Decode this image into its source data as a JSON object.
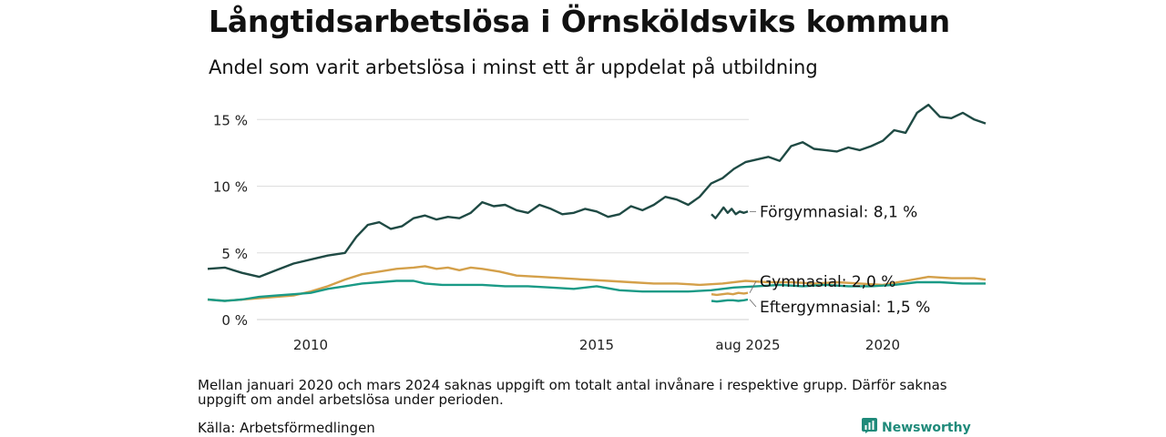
{
  "title": "Långtidsarbetslösa i Örnsköldsviks kommun",
  "subtitle": "Andel som varit arbetslösa i minst ett år uppdelat på utbildning",
  "note": "Mellan januari 2020 och mars 2024 saknas uppgift om totalt antal invånare i respektive grupp. Därför saknas uppgift om andel arbetslösa under perioden.",
  "source": "Källa: Arbetsförmedlingen",
  "brand": {
    "name": "Newsworthy",
    "icon": "newsworthy-logo-icon",
    "color": "#1f8a7a"
  },
  "chart_data": {
    "type": "line",
    "x_ticks": [
      2010,
      2015,
      2020
    ],
    "end_tick_label": "aug 2025",
    "y_ticks": [
      {
        "value": 0,
        "label": "0 %"
      },
      {
        "value": 5,
        "label": "5 %"
      },
      {
        "value": 10,
        "label": "10 %"
      },
      {
        "value": 15,
        "label": "15 %"
      }
    ],
    "ylim": [
      0,
      16.5
    ],
    "grid": true,
    "series": [
      {
        "name": "Förgymnasial",
        "color": "#1f4a44",
        "end_label": "Förgymnasial: 8,1 %",
        "points": [
          [
            2008.2,
            3.8
          ],
          [
            2008.5,
            3.9
          ],
          [
            2008.8,
            3.5
          ],
          [
            2009.1,
            3.2
          ],
          [
            2009.4,
            3.7
          ],
          [
            2009.7,
            4.2
          ],
          [
            2010,
            4.5
          ],
          [
            2010.3,
            4.8
          ],
          [
            2010.6,
            5.0
          ],
          [
            2010.8,
            6.2
          ],
          [
            2011.0,
            7.1
          ],
          [
            2011.2,
            7.3
          ],
          [
            2011.4,
            6.8
          ],
          [
            2011.6,
            7.0
          ],
          [
            2011.8,
            7.6
          ],
          [
            2012.0,
            7.8
          ],
          [
            2012.2,
            7.5
          ],
          [
            2012.4,
            7.7
          ],
          [
            2012.6,
            7.6
          ],
          [
            2012.8,
            8.0
          ],
          [
            2013.0,
            8.8
          ],
          [
            2013.2,
            8.5
          ],
          [
            2013.4,
            8.6
          ],
          [
            2013.6,
            8.2
          ],
          [
            2013.8,
            8.0
          ],
          [
            2014.0,
            8.6
          ],
          [
            2014.2,
            8.3
          ],
          [
            2014.4,
            7.9
          ],
          [
            2014.6,
            8.0
          ],
          [
            2014.8,
            8.3
          ],
          [
            2015.0,
            8.1
          ],
          [
            2015.2,
            7.7
          ],
          [
            2015.4,
            7.9
          ],
          [
            2015.6,
            8.5
          ],
          [
            2015.8,
            8.2
          ],
          [
            2016.0,
            8.6
          ],
          [
            2016.2,
            9.2
          ],
          [
            2016.4,
            9.0
          ],
          [
            2016.6,
            8.6
          ],
          [
            2016.8,
            9.2
          ],
          [
            2017.0,
            10.2
          ],
          [
            2017.2,
            10.6
          ],
          [
            2017.4,
            11.3
          ],
          [
            2017.6,
            11.8
          ],
          [
            2017.8,
            12.0
          ],
          [
            2018.0,
            12.2
          ],
          [
            2018.2,
            11.9
          ],
          [
            2018.4,
            13.0
          ],
          [
            2018.6,
            13.3
          ],
          [
            2018.8,
            12.8
          ],
          [
            2019.0,
            12.7
          ],
          [
            2019.2,
            12.6
          ],
          [
            2019.4,
            12.9
          ],
          [
            2019.6,
            12.7
          ],
          [
            2019.8,
            13.0
          ],
          [
            2020.0,
            13.4
          ],
          [
            2020.2,
            14.2
          ],
          [
            2020.4,
            14.0
          ],
          [
            2020.6,
            15.5
          ],
          [
            2020.8,
            16.1
          ],
          [
            2021.0,
            15.2
          ],
          [
            2021.2,
            15.1
          ],
          [
            2021.4,
            15.5
          ],
          [
            2021.6,
            15.0
          ],
          [
            2021.8,
            14.7
          ]
        ],
        "points_2025": [
          [
            2025.0,
            7.9
          ],
          [
            2025.15,
            7.6
          ],
          [
            2025.3,
            8.0
          ],
          [
            2025.45,
            8.4
          ],
          [
            2025.6,
            8.0
          ],
          [
            2025.75,
            8.3
          ],
          [
            2025.9,
            7.9
          ],
          [
            2026.05,
            8.1
          ],
          [
            2026.2,
            8.0
          ],
          [
            2026.35,
            8.1
          ]
        ]
      },
      {
        "name": "Gymnasial",
        "color": "#d4a04a",
        "end_label": "Gymnasial: 2,0 %",
        "points": [
          [
            2008.2,
            1.5
          ],
          [
            2008.5,
            1.4
          ],
          [
            2008.8,
            1.5
          ],
          [
            2009.1,
            1.6
          ],
          [
            2009.4,
            1.7
          ],
          [
            2009.7,
            1.8
          ],
          [
            2010,
            2.1
          ],
          [
            2010.3,
            2.5
          ],
          [
            2010.6,
            3.0
          ],
          [
            2010.9,
            3.4
          ],
          [
            2011.2,
            3.6
          ],
          [
            2011.5,
            3.8
          ],
          [
            2011.8,
            3.9
          ],
          [
            2012.0,
            4.0
          ],
          [
            2012.2,
            3.8
          ],
          [
            2012.4,
            3.9
          ],
          [
            2012.6,
            3.7
          ],
          [
            2012.8,
            3.9
          ],
          [
            2013.0,
            3.8
          ],
          [
            2013.3,
            3.6
          ],
          [
            2013.6,
            3.3
          ],
          [
            2014.0,
            3.2
          ],
          [
            2014.4,
            3.1
          ],
          [
            2014.8,
            3.0
          ],
          [
            2015.2,
            2.9
          ],
          [
            2015.6,
            2.8
          ],
          [
            2016.0,
            2.7
          ],
          [
            2016.4,
            2.7
          ],
          [
            2016.8,
            2.6
          ],
          [
            2017.2,
            2.7
          ],
          [
            2017.6,
            2.9
          ],
          [
            2018.0,
            2.8
          ],
          [
            2018.4,
            2.8
          ],
          [
            2018.8,
            2.7
          ],
          [
            2019.2,
            2.8
          ],
          [
            2019.6,
            2.7
          ],
          [
            2020.0,
            2.6
          ],
          [
            2020.4,
            2.9
          ],
          [
            2020.8,
            3.2
          ],
          [
            2021.2,
            3.1
          ],
          [
            2021.6,
            3.1
          ],
          [
            2021.8,
            3.0
          ]
        ],
        "points_2025": [
          [
            2025.0,
            1.9
          ],
          [
            2025.2,
            1.85
          ],
          [
            2025.4,
            1.9
          ],
          [
            2025.6,
            1.95
          ],
          [
            2025.8,
            1.9
          ],
          [
            2026.0,
            2.0
          ],
          [
            2026.2,
            1.95
          ],
          [
            2026.35,
            2.0
          ]
        ]
      },
      {
        "name": "Eftergymnasial",
        "color": "#1a9a86",
        "end_label": "Eftergymnasial: 1,5 %",
        "points": [
          [
            2008.2,
            1.5
          ],
          [
            2008.5,
            1.4
          ],
          [
            2008.8,
            1.5
          ],
          [
            2009.1,
            1.7
          ],
          [
            2009.4,
            1.8
          ],
          [
            2009.7,
            1.9
          ],
          [
            2010,
            2.0
          ],
          [
            2010.3,
            2.3
          ],
          [
            2010.6,
            2.5
          ],
          [
            2010.9,
            2.7
          ],
          [
            2011.2,
            2.8
          ],
          [
            2011.5,
            2.9
          ],
          [
            2011.8,
            2.9
          ],
          [
            2012.0,
            2.7
          ],
          [
            2012.3,
            2.6
          ],
          [
            2012.6,
            2.6
          ],
          [
            2013.0,
            2.6
          ],
          [
            2013.4,
            2.5
          ],
          [
            2013.8,
            2.5
          ],
          [
            2014.2,
            2.4
          ],
          [
            2014.6,
            2.3
          ],
          [
            2015.0,
            2.5
          ],
          [
            2015.4,
            2.2
          ],
          [
            2015.8,
            2.1
          ],
          [
            2016.2,
            2.1
          ],
          [
            2016.6,
            2.1
          ],
          [
            2017.0,
            2.2
          ],
          [
            2017.4,
            2.4
          ],
          [
            2017.8,
            2.5
          ],
          [
            2018.2,
            2.6
          ],
          [
            2018.6,
            2.5
          ],
          [
            2019.0,
            2.6
          ],
          [
            2019.4,
            2.5
          ],
          [
            2019.8,
            2.5
          ],
          [
            2020.2,
            2.6
          ],
          [
            2020.6,
            2.8
          ],
          [
            2021.0,
            2.8
          ],
          [
            2021.4,
            2.7
          ],
          [
            2021.8,
            2.7
          ]
        ],
        "points_2025": [
          [
            2025.0,
            1.4
          ],
          [
            2025.2,
            1.35
          ],
          [
            2025.4,
            1.4
          ],
          [
            2025.6,
            1.45
          ],
          [
            2025.8,
            1.45
          ],
          [
            2026.0,
            1.4
          ],
          [
            2026.2,
            1.45
          ],
          [
            2026.35,
            1.5
          ]
        ]
      }
    ]
  }
}
